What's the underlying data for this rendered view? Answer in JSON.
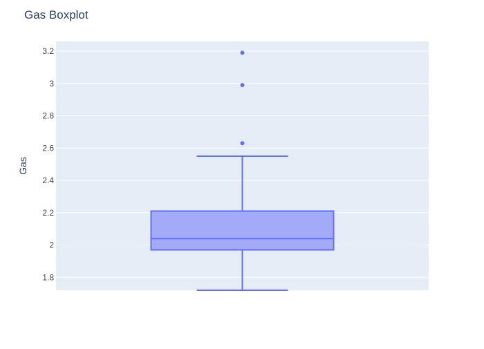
{
  "chart_data": {
    "type": "box",
    "title": "Gas Boxplot",
    "xlabel": "",
    "ylabel": "Gas",
    "ylim": [
      1.72,
      3.26
    ],
    "yticks": [
      1.8,
      2.0,
      2.2,
      2.4,
      2.6,
      2.8,
      3.0,
      3.2
    ],
    "ytick_labels": [
      "1.8",
      "2",
      "2.2",
      "2.4",
      "2.6",
      "2.8",
      "3",
      "3.2"
    ],
    "grid": true,
    "box": {
      "lower_fence": 1.72,
      "q1": 1.97,
      "median": 2.04,
      "q3": 2.21,
      "upper_fence": 2.55
    },
    "outliers": [
      2.63,
      2.99,
      3.19
    ],
    "colors": {
      "plot_background": "#e5ecf6",
      "grid": "#ffffff",
      "box_line": "#636efa",
      "box_fill": "#a3aaf7",
      "text": "#2a3f5f",
      "tick_text": "#444444"
    }
  }
}
